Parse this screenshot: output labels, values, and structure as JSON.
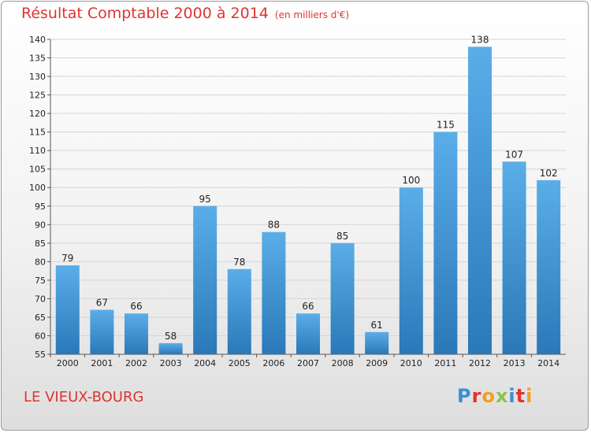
{
  "chart_data": {
    "type": "bar",
    "title": "Résultat Comptable 2000 à 2014",
    "subtitle": "(en milliers d'€)",
    "xlabel": "",
    "ylabel": "",
    "categories": [
      "2000",
      "2001",
      "2002",
      "2003",
      "2004",
      "2005",
      "2006",
      "2007",
      "2008",
      "2009",
      "2010",
      "2011",
      "2012",
      "2013",
      "2014"
    ],
    "values": [
      79,
      67,
      66,
      58,
      95,
      78,
      88,
      66,
      85,
      61,
      100,
      115,
      138,
      107,
      102
    ],
    "ylim": [
      55,
      140
    ],
    "yticks": [
      55,
      60,
      65,
      70,
      75,
      80,
      85,
      90,
      95,
      100,
      105,
      110,
      115,
      120,
      125,
      130,
      135,
      140
    ],
    "grid": true
  },
  "footer": {
    "location": "LE VIEUX-BOURG",
    "logo": "Proxiti"
  },
  "colors": {
    "title": "#e0342e",
    "bar_top": "#5aaee8",
    "bar_bottom": "#2a78b8",
    "grid": "#d4d4d4"
  }
}
